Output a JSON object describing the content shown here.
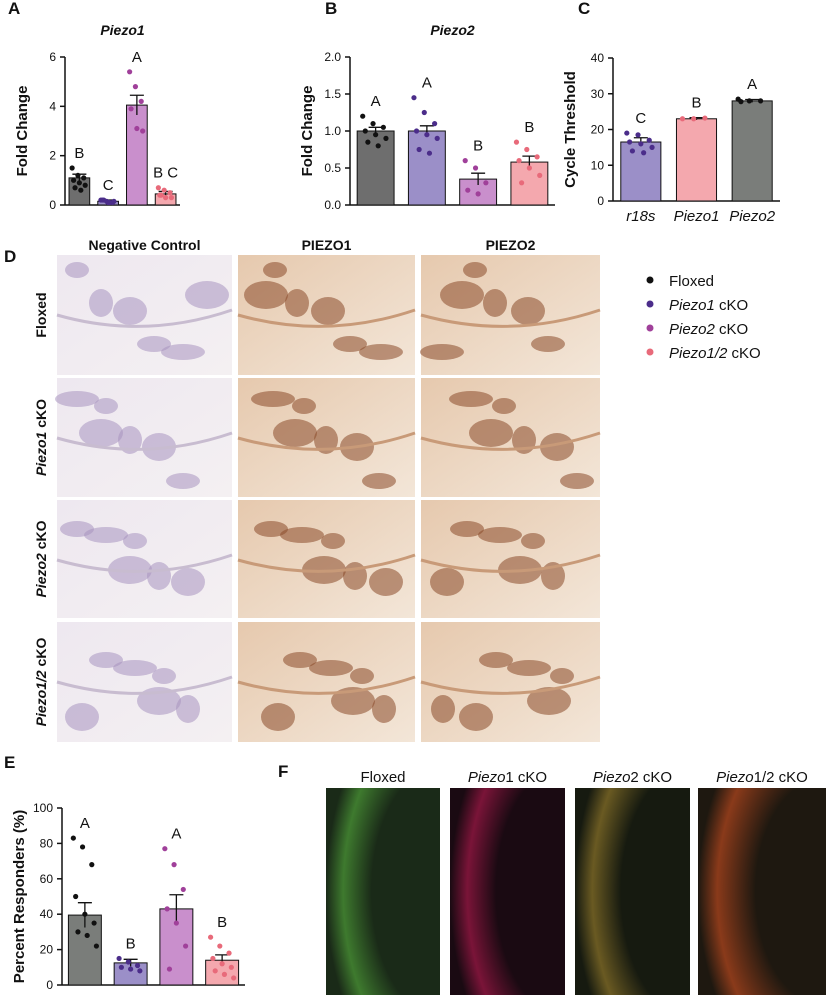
{
  "panel_labels": [
    "A",
    "B",
    "C",
    "D",
    "E",
    "F"
  ],
  "chart_data": [
    {
      "type": "bar",
      "title": "Piezo1",
      "ylabel": "Fold Change",
      "categories": [
        null,
        null,
        null,
        null
      ],
      "values": [
        1.1,
        0.15,
        4.05,
        0.45
      ],
      "errors": [
        0.15,
        0.05,
        0.4,
        0.1
      ],
      "annotations": [
        "B",
        "C",
        "A",
        "B C"
      ],
      "colors": [
        "#6e6e6e",
        "#9b8fc8",
        "#c98fcc",
        "#f4a8ae"
      ],
      "point_colors": [
        "#111111",
        "#4b2d8a",
        "#a0409a",
        "#e86a7a"
      ],
      "points": [
        [
          1.5,
          1.2,
          1.1,
          1.0,
          0.9,
          0.8,
          0.7,
          0.6
        ],
        [
          0.2,
          0.15,
          0.1,
          0.2,
          0.1,
          0.15,
          0.2,
          0.1
        ],
        [
          5.4,
          4.8,
          4.2,
          3.9,
          3.1,
          3.0
        ],
        [
          0.7,
          0.6,
          0.5,
          0.4,
          0.3,
          0.3,
          0.4
        ]
      ],
      "ylim": [
        0,
        6
      ],
      "yticks": [
        0,
        2,
        4,
        6
      ]
    },
    {
      "type": "bar",
      "title": "Piezo2",
      "ylabel": "Fold Change",
      "categories": [
        null,
        null,
        null,
        null
      ],
      "values": [
        1.0,
        1.0,
        0.35,
        0.58
      ],
      "errors": [
        0.05,
        0.07,
        0.08,
        0.08
      ],
      "annotations": [
        "A",
        "A",
        "B",
        "B"
      ],
      "colors": [
        "#6e6e6e",
        "#9b8fc8",
        "#c98fcc",
        "#f4a8ae"
      ],
      "point_colors": [
        "#111111",
        "#4b2d8a",
        "#a0409a",
        "#e86a7a"
      ],
      "points": [
        [
          1.2,
          1.1,
          1.05,
          1.0,
          0.95,
          0.9,
          0.85,
          0.8
        ],
        [
          1.45,
          1.25,
          1.1,
          1.0,
          0.95,
          0.9,
          0.75,
          0.7
        ],
        [
          0.6,
          0.5,
          0.3,
          0.2,
          0.15
        ],
        [
          0.85,
          0.75,
          0.65,
          0.6,
          0.5,
          0.4,
          0.3
        ]
      ],
      "ylim": [
        0,
        2
      ],
      "yticks": [
        {
          "value": 0,
          "label": "0.0"
        },
        {
          "value": 0.5,
          "label": "0.5"
        },
        {
          "value": 1,
          "label": "1.0"
        },
        {
          "value": 1.5,
          "label": "1.5"
        },
        {
          "value": 2,
          "label": "2.0"
        }
      ]
    },
    {
      "type": "bar",
      "ylabel": "Cycle Threshold",
      "categories": [
        "r18s",
        "Piezo1",
        "Piezo2"
      ],
      "values": [
        16.5,
        23,
        28
      ],
      "errors": [
        1.2,
        0.3,
        0.4
      ],
      "annotations": [
        "C",
        "B",
        "A"
      ],
      "colors": [
        "#9b8fc8",
        "#f4a8ae",
        "#7a7d7a"
      ],
      "point_colors": [
        "#4b2d8a",
        "#e86a7a",
        "#111111"
      ],
      "points": [
        [
          19,
          18.5,
          17,
          16.5,
          16,
          15,
          14,
          13.5
        ],
        [
          23,
          23,
          23.2
        ],
        [
          28.5,
          28,
          28,
          27.8
        ]
      ],
      "ylim": [
        0,
        40
      ],
      "yticks": [
        0,
        10,
        20,
        30,
        40
      ]
    },
    {
      "type": "bar",
      "ylabel": "Percent Responders (%)",
      "categories": [
        null,
        null,
        null,
        null
      ],
      "values": [
        39.5,
        12.5,
        43,
        14
      ],
      "errors": [
        7,
        2,
        8,
        3
      ],
      "annotations": [
        "A",
        "B",
        "A",
        "B"
      ],
      "colors": [
        "#7a7d7a",
        "#9b8fc8",
        "#c98fcc",
        "#f4a8ae"
      ],
      "point_colors": [
        "#111111",
        "#4b2d8a",
        "#a0409a",
        "#e86a7a"
      ],
      "points": [
        [
          83,
          78,
          68,
          50,
          40,
          35,
          30,
          28,
          22
        ],
        [
          15,
          13,
          11,
          10,
          9,
          8
        ],
        [
          77,
          68,
          54,
          43,
          35,
          22,
          9
        ],
        [
          27,
          22,
          18,
          15,
          12,
          10,
          8,
          6,
          4
        ]
      ],
      "ylim": [
        0,
        100
      ],
      "yticks": [
        0,
        20,
        40,
        60,
        80,
        100
      ]
    }
  ],
  "histology": {
    "columns": [
      "Negative Control",
      "PIEZO1",
      "PIEZO2"
    ],
    "rows": [
      {
        "rest": "Floxed"
      },
      {
        "italic": "Piezo1",
        "rest": " cKO"
      },
      {
        "italic": "Piezo2",
        "rest": " cKO"
      },
      {
        "italic": "Piezo1/2",
        "rest": " cKO"
      }
    ],
    "legend": [
      {
        "rest": "Floxed",
        "color": "#111111"
      },
      {
        "italic": "Piezo1",
        "rest": " cKO",
        "color": "#4b2d8a"
      },
      {
        "italic": "Piezo2",
        "rest": " cKO",
        "color": "#a0409a"
      },
      {
        "italic": "Piezo1/2",
        "rest": " cKO",
        "color": "#e86a7a"
      }
    ]
  },
  "fluorescence": {
    "columns": [
      {
        "rest": "Floxed"
      },
      {
        "italic": "Piezo",
        "rest": "1 cKO"
      },
      {
        "italic": "Piezo",
        "rest": "2 cKO"
      },
      {
        "italic": "Piezo",
        "rest": "1/2 cKO"
      }
    ]
  }
}
